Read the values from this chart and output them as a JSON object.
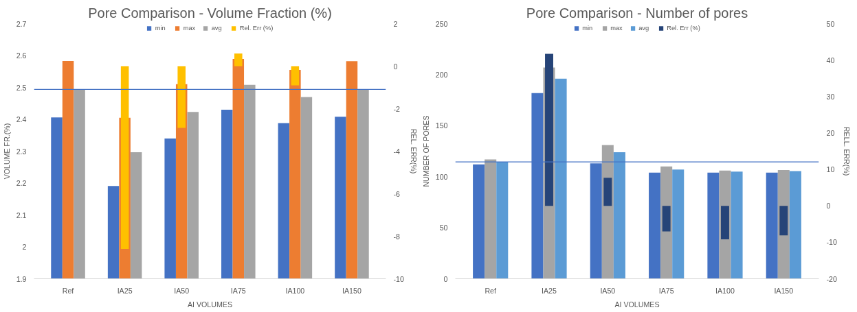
{
  "chart_data": [
    {
      "type": "bar",
      "title": "Pore Comparison - Volume Fraction (%)",
      "xlabel": "AI VOLUMES",
      "ylabel": "VOLUME FR.(%)",
      "y2label": "REL. ERR(%)",
      "categories": [
        "Ref",
        "IA25",
        "IA50",
        "IA75",
        "IA100",
        "IA150"
      ],
      "series": [
        {
          "name": "min",
          "color": "#4472c4",
          "values": [
            2.406,
            2.191,
            2.34,
            2.43,
            2.388,
            2.408
          ]
        },
        {
          "name": "max",
          "color": "#ed7d31",
          "values": [
            2.583,
            2.405,
            2.51,
            2.589,
            2.555,
            2.582
          ]
        },
        {
          "name": "avg",
          "color": "#a5a5a5",
          "values": [
            2.494,
            2.297,
            2.423,
            2.508,
            2.47,
            2.494
          ]
        },
        {
          "name": "Rel. Err (%)",
          "color": "#ffc000",
          "axis": "y2",
          "values": [
            0,
            -8.6,
            -2.9,
            0.6,
            -0.9,
            0
          ]
        }
      ],
      "ylim": [
        1.9,
        2.7
      ],
      "yticks": [
        1.9,
        2,
        2.1,
        2.2,
        2.3,
        2.4,
        2.5,
        2.6,
        2.7
      ],
      "y2lim": [
        -10,
        2
      ],
      "y2ticks": [
        -10,
        -8,
        -6,
        -4,
        -2,
        0,
        2
      ],
      "ref_lines": [
        {
          "axis": "y",
          "value": 2.494,
          "color": "#4472c4"
        }
      ],
      "grid": false,
      "legend": "top"
    },
    {
      "type": "bar",
      "title": "Pore Comparison - Number of pores",
      "xlabel": "AI VOLUMES",
      "ylabel": "NUMBER OF PORES",
      "y2label": "RELL. ERR(%)",
      "categories": [
        "Ref",
        "IA25",
        "IA50",
        "IA75",
        "IA100",
        "IA150"
      ],
      "series": [
        {
          "name": "min",
          "color": "#4472c4",
          "values": [
            112,
            182,
            113,
            104,
            104,
            104
          ]
        },
        {
          "name": "max",
          "color": "#a5a5a5",
          "values": [
            117,
            207,
            131,
            110,
            106,
            106.5
          ]
        },
        {
          "name": "avg",
          "color": "#5b9bd5",
          "values": [
            114.5,
            196,
            124,
            107,
            105,
            105.5
          ]
        },
        {
          "name": "Rel. Err (%)",
          "color": "#264478",
          "axis": "y2",
          "values": [
            0,
            41.7,
            7.7,
            -7,
            -9.2,
            -8.1
          ]
        }
      ],
      "ylim": [
        0,
        250
      ],
      "yticks": [
        0,
        50,
        100,
        150,
        200,
        250
      ],
      "y2lim": [
        -20,
        50
      ],
      "y2ticks": [
        -20,
        -10,
        0,
        10,
        20,
        30,
        40,
        50
      ],
      "ref_lines": [
        {
          "axis": "y",
          "value": 114.5,
          "color": "#4472c4"
        }
      ],
      "grid": false,
      "legend": "top"
    }
  ]
}
